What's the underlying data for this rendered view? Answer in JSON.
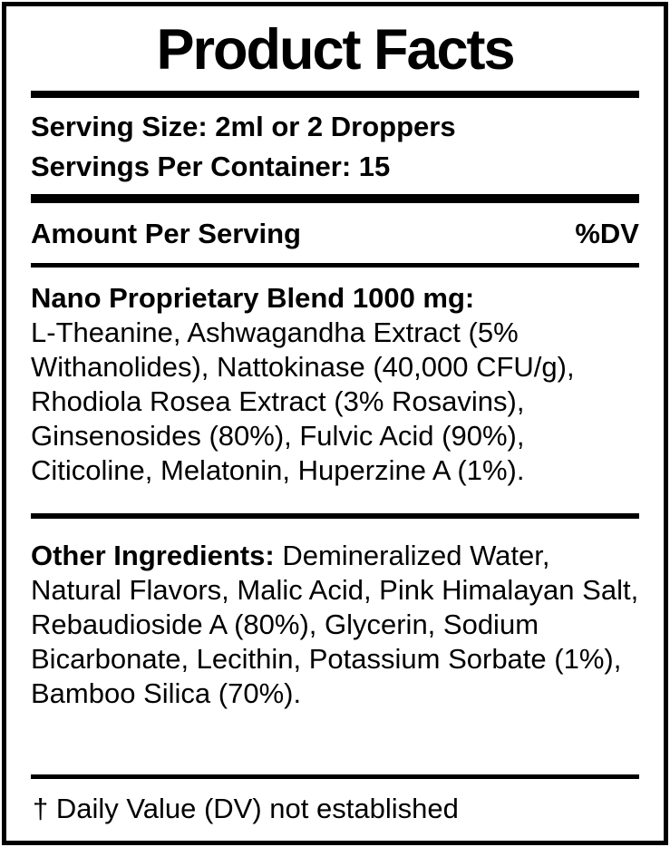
{
  "label": {
    "title": "Product Facts",
    "serving": {
      "size_line": "Serving Size: 2ml or 2 Droppers",
      "per_container_line": "Servings Per Container: 15"
    },
    "header": {
      "amount_per_serving": "Amount Per Serving",
      "daily_value": "%DV"
    },
    "blend": {
      "name": "Nano Proprietary Blend 1000 mg:",
      "ingredients": "L-Theanine, Ashwagandha Extract (5% Withanolides), Nattokinase (40,000 CFU/g), Rhodiola Rosea Extract (3% Rosavins), Ginsenosides (80%), Fulvic Acid (90%), Citicoline, Melatonin, Huperzine A (1%)."
    },
    "other_ingredients": {
      "label": "Other Ingredients:",
      "text": " Demineralized Water, Natural Flavors, Malic Acid, Pink Himalayan Salt, Rebaudioside A (80%), Glycerin, Sodium Bicarbonate, Lecithin, Potassium Sorbate (1%), Bamboo Silica (70%)."
    },
    "footnote": "† Daily Value (DV) not established",
    "colors": {
      "text": "#000000",
      "background": "#ffffff",
      "border": "#000000"
    }
  }
}
